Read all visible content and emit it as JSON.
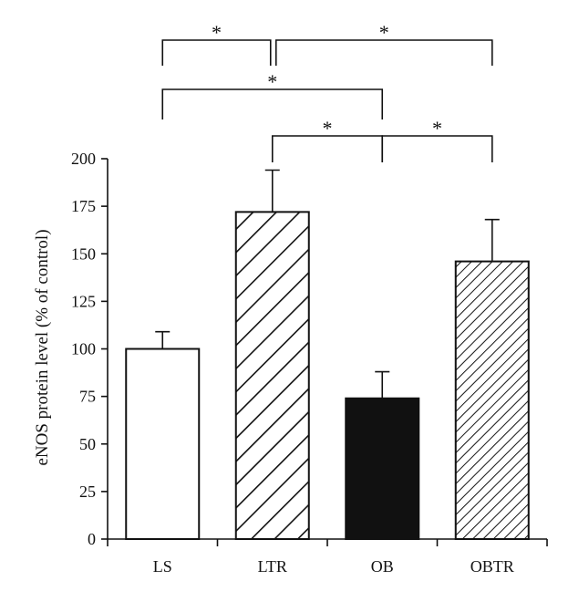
{
  "chart_data": {
    "type": "bar",
    "categories": [
      "LS",
      "LTR",
      "OB",
      "OBTR"
    ],
    "values": [
      100,
      172,
      74,
      146
    ],
    "errors": [
      9,
      22,
      14,
      22
    ],
    "fills": [
      "white",
      "hatch-wide",
      "solid-black",
      "hatch-fine"
    ],
    "ylabel": "eNOS protein level (% of control)",
    "ylim": [
      0,
      200
    ],
    "yticks": [
      0,
      25,
      50,
      75,
      100,
      125,
      150,
      175,
      200
    ],
    "grid": false,
    "significance": [
      {
        "from": "LS",
        "to": "LTR",
        "label": "*"
      },
      {
        "from": "LTR",
        "to": "OBTR",
        "label": "*"
      },
      {
        "from": "LS",
        "to": "OB",
        "label": "*"
      },
      {
        "from": "LTR",
        "to": "OB",
        "label": "*"
      },
      {
        "from": "OB",
        "to": "OBTR",
        "label": "*"
      }
    ]
  },
  "colors": {
    "axis": "#111111",
    "bar_outline": "#111111",
    "white_fill": "#ffffff",
    "black_fill": "#111111"
  }
}
